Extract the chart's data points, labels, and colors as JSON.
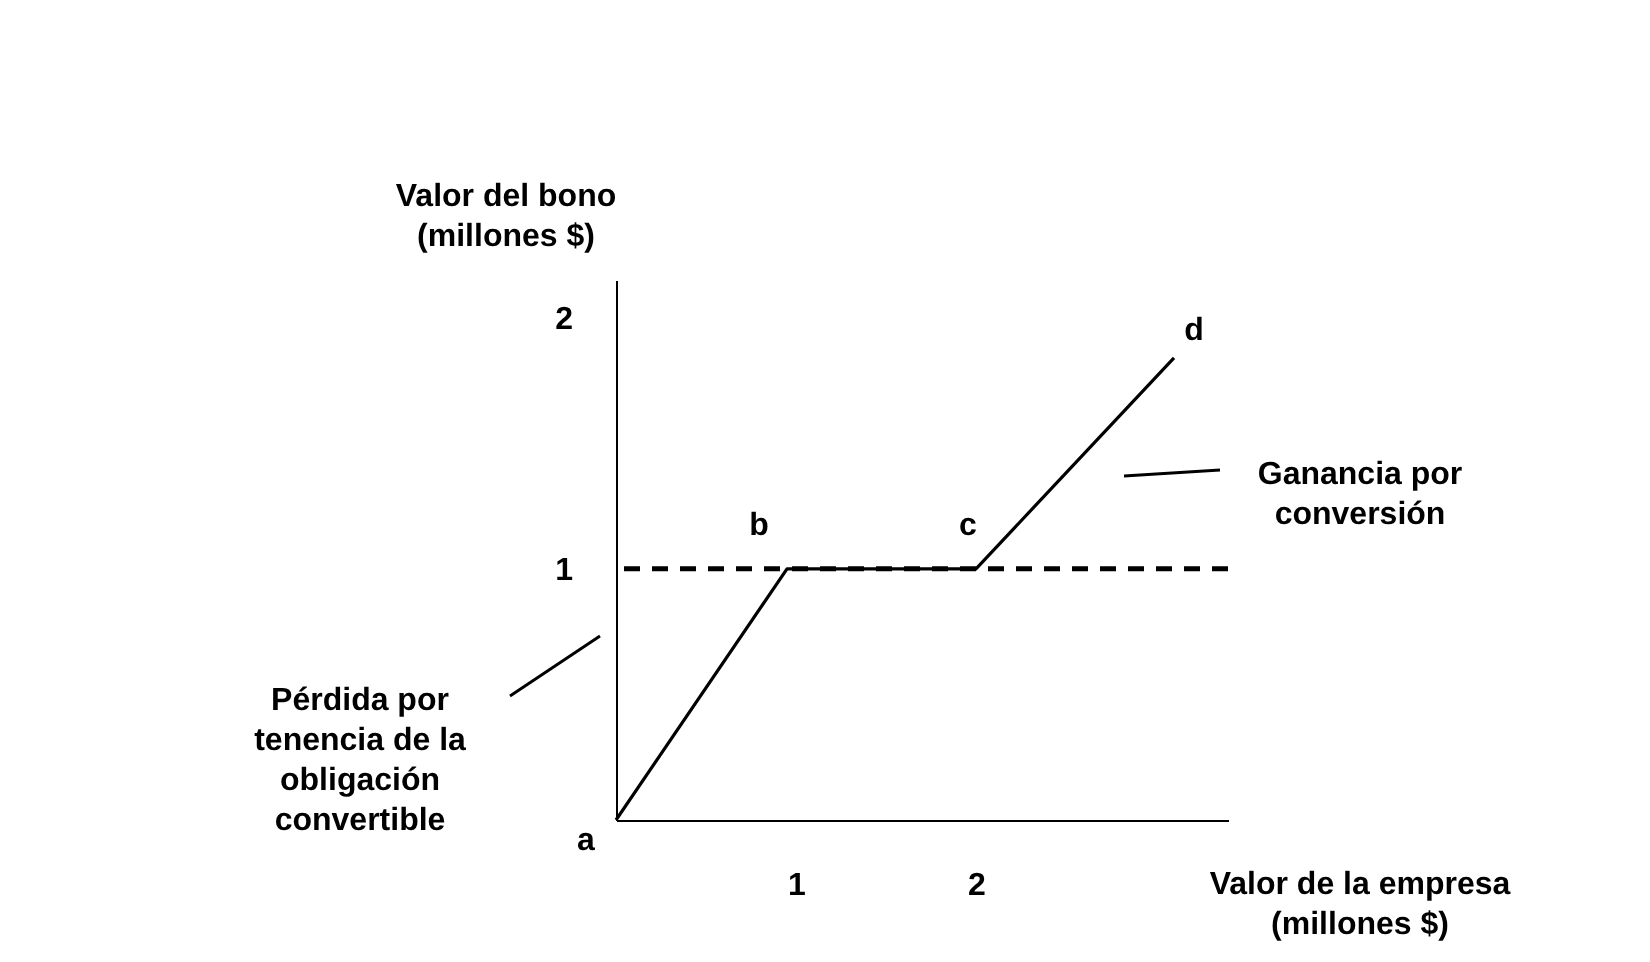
{
  "chart_data": {
    "type": "line",
    "xlabel": "Valor de la empresa\n(millones $)",
    "ylabel": "Valor del bono\n(millones $)",
    "x": [
      0,
      0.95,
      2.0,
      3.1
    ],
    "series": [
      {
        "color": "#000000",
        "values": [
          0,
          1,
          1,
          1.84
        ]
      }
    ],
    "xlim": [
      0,
      3.4
    ],
    "ylim": [
      0,
      2.15
    ],
    "xticks": [
      1,
      2
    ],
    "yticks": [
      1,
      2
    ],
    "grid": false,
    "marker": "none",
    "line_style": "solid",
    "ref_lines": [
      {
        "axis": "y",
        "value": 1,
        "color": "#000000",
        "line_style": "dashed"
      }
    ],
    "annotations": [
      {
        "text": "a",
        "x": 0,
        "y": 0
      },
      {
        "text": "b",
        "x": 0.95,
        "y": 1
      },
      {
        "text": "c",
        "x": 2.0,
        "y": 1
      },
      {
        "text": "d",
        "x": 3.1,
        "y": 1.84
      },
      "Pérdida por\ntenencia de la\nobligación\nconvertible",
      "Ganancia por\nconversión"
    ]
  }
}
